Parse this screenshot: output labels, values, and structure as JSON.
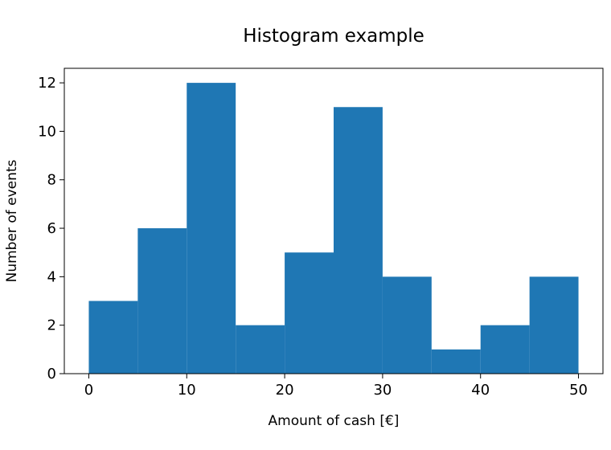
{
  "chart_data": {
    "type": "bar",
    "title": "Histogram example",
    "xlabel": "Amount of cash [€]",
    "ylabel": "Number of events",
    "bins": [
      {
        "start": 0,
        "end": 5,
        "count": 3
      },
      {
        "start": 5,
        "end": 10,
        "count": 6
      },
      {
        "start": 10,
        "end": 15,
        "count": 12
      },
      {
        "start": 15,
        "end": 20,
        "count": 2
      },
      {
        "start": 20,
        "end": 25,
        "count": 5
      },
      {
        "start": 25,
        "end": 30,
        "count": 11
      },
      {
        "start": 30,
        "end": 35,
        "count": 4
      },
      {
        "start": 35,
        "end": 40,
        "count": 1
      },
      {
        "start": 40,
        "end": 45,
        "count": 2
      },
      {
        "start": 45,
        "end": 50,
        "count": 4
      }
    ],
    "xlim": [
      -2.5,
      52.5
    ],
    "ylim": [
      0,
      12.6
    ],
    "xticks": [
      0,
      10,
      20,
      30,
      40,
      50
    ],
    "yticks": [
      0,
      2,
      4,
      6,
      8,
      10,
      12
    ],
    "bar_color": "#1f77b4",
    "grid": false,
    "legend": "none"
  }
}
